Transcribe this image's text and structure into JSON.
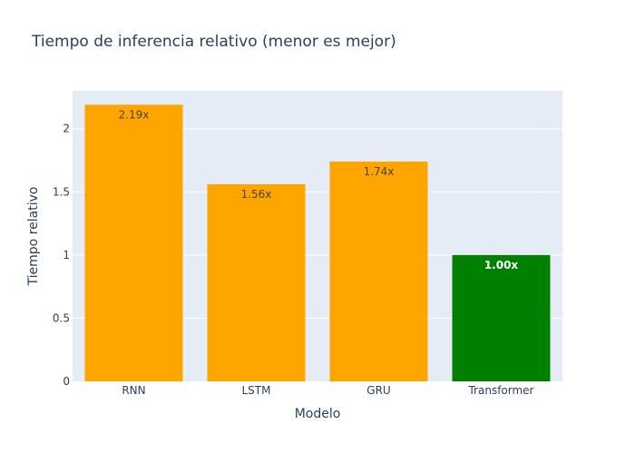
{
  "chart_data": {
    "type": "bar",
    "title": "Tiempo de inferencia relativo (menor es mejor)",
    "xlabel": "Modelo",
    "ylabel": "Tiempo relativo",
    "categories": [
      "RNN",
      "LSTM",
      "GRU",
      "Transformer"
    ],
    "values": [
      2.19,
      1.56,
      1.74,
      1.0
    ],
    "labels": [
      "2.19x",
      "1.56x",
      "1.74x",
      "1.00x"
    ],
    "colors": [
      "#FFA500",
      "#FFA500",
      "#FFA500",
      "#008000"
    ],
    "ylim": [
      0,
      2.3
    ],
    "yticks": [
      0,
      0.5,
      1,
      1.5,
      2
    ],
    "ytick_labels": [
      "0",
      "0.5",
      "1",
      "1.5",
      "2"
    ],
    "grid": true,
    "plot_background": "#E5ECF6"
  }
}
